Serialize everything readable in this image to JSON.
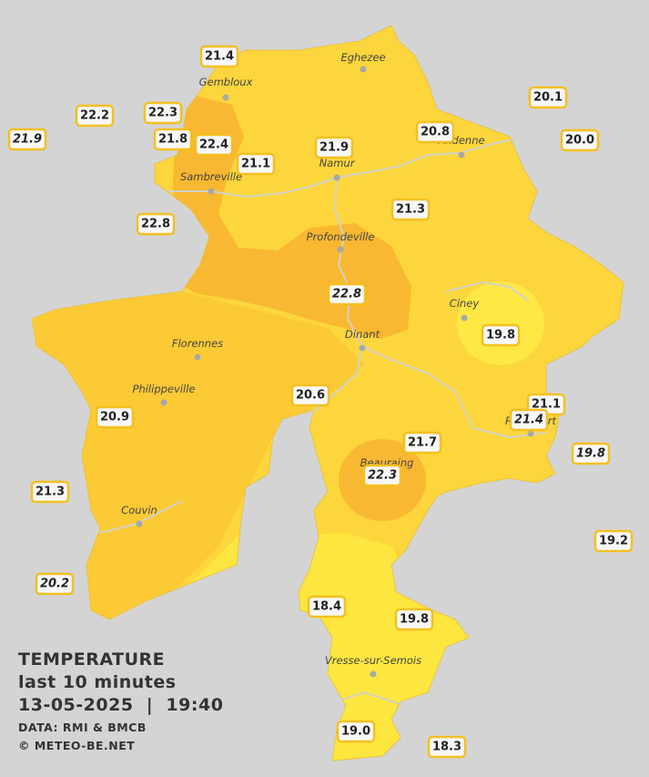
{
  "legend": {
    "title": "TEMPERATURE",
    "period": "last 10 minutes",
    "datetime": "13-05-2025  |  19:40",
    "source": "DATA: RMI & BMCB",
    "credit": "© METEO-BE.NET"
  },
  "places": [
    "Eghezee",
    "Gembloux",
    "Andenne",
    "Namur",
    "Sambreville",
    "Profondeville",
    "Ciney",
    "Dinant",
    "Florennes",
    "Philippeville",
    "Rochefort",
    "Beauraing",
    "Couvin",
    "Vresse-sur-Semois"
  ],
  "stations": [
    {
      "value": "21.4",
      "italic": false
    },
    {
      "value": "22.2",
      "italic": false
    },
    {
      "value": "22.3",
      "italic": false
    },
    {
      "value": "21.9",
      "italic": true
    },
    {
      "value": "21.8",
      "italic": false
    },
    {
      "value": "22.4",
      "italic": false
    },
    {
      "value": "21.1",
      "italic": false
    },
    {
      "value": "21.9",
      "italic": false
    },
    {
      "value": "20.8",
      "italic": false
    },
    {
      "value": "20.1",
      "italic": false
    },
    {
      "value": "20.0",
      "italic": false
    },
    {
      "value": "22.8",
      "italic": false
    },
    {
      "value": "21.3",
      "italic": false
    },
    {
      "value": "22.8",
      "italic": true
    },
    {
      "value": "19.8",
      "italic": false
    },
    {
      "value": "20.6",
      "italic": false
    },
    {
      "value": "20.9",
      "italic": false
    },
    {
      "value": "21.1",
      "italic": false
    },
    {
      "value": "21.4",
      "italic": true
    },
    {
      "value": "19.8",
      "italic": true
    },
    {
      "value": "21.7",
      "italic": false
    },
    {
      "value": "22.3",
      "italic": true
    },
    {
      "value": "21.3",
      "italic": false
    },
    {
      "value": "19.2",
      "italic": false
    },
    {
      "value": "20.2",
      "italic": true
    },
    {
      "value": "18.4",
      "italic": false
    },
    {
      "value": "19.8",
      "italic": false
    },
    {
      "value": "19.0",
      "italic": false
    },
    {
      "value": "18.3",
      "italic": false
    }
  ]
}
